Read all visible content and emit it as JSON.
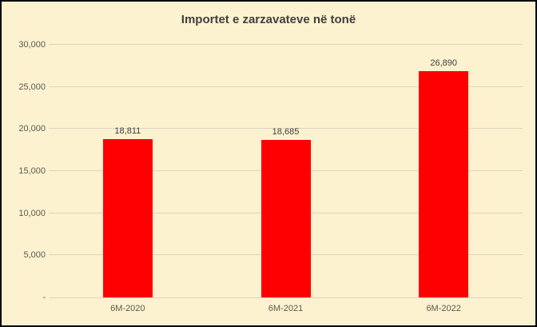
{
  "chart_data": {
    "type": "bar",
    "title": "Importet e zarzavateve në tonë",
    "categories": [
      "6M-2020",
      "6M-2021",
      "6M-2022"
    ],
    "values": [
      18811,
      18685,
      26890
    ],
    "value_labels": [
      "18,811",
      "18,685",
      "26,890"
    ],
    "xlabel": "",
    "ylabel": "",
    "ylim": [
      0,
      30000
    ],
    "ytick_step": 5000,
    "ytick_labels": [
      "-",
      "5,000",
      "10,000",
      "15,000",
      "20,000",
      "25,000",
      "30,000"
    ],
    "grid": true,
    "legend": false,
    "colors": {
      "bar": "#FF0000",
      "background": "#FCF2CF",
      "gridline": "#DCD5C2",
      "axis_line": "#D7D2C4",
      "title": "#404040",
      "tick_label": "#595959",
      "value_label": "#404040",
      "border": "#000000"
    }
  }
}
